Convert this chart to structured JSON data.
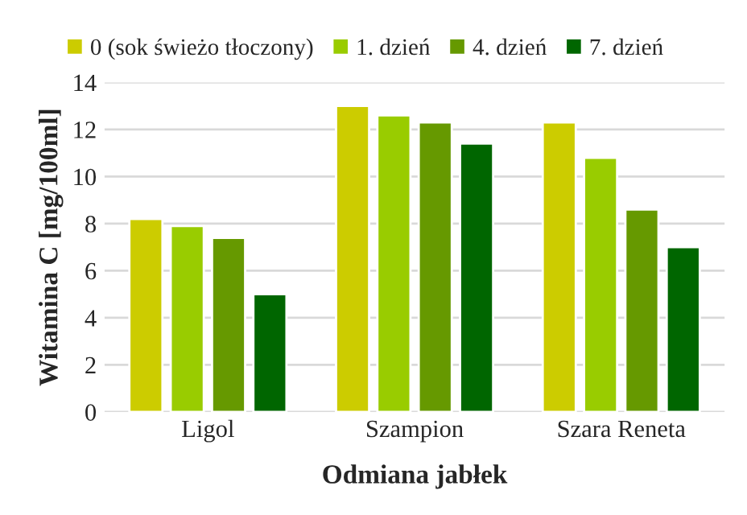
{
  "chart_data": {
    "type": "bar",
    "xlabel": "Odmiana jabłek",
    "ylabel": "Witamina C [mg/100ml]",
    "categories": [
      "Ligol",
      "Szampion",
      "Szara Reneta"
    ],
    "series": [
      {
        "name": "0 (sok świeżo tłoczony)",
        "color": "#cccc00",
        "values": [
          8.2,
          13.0,
          12.3
        ]
      },
      {
        "name": "1. dzień",
        "color": "#99cc00",
        "values": [
          7.9,
          12.6,
          10.8
        ]
      },
      {
        "name": "4. dzień",
        "color": "#669900",
        "values": [
          7.4,
          12.3,
          8.6
        ]
      },
      {
        "name": "7. dzień",
        "color": "#006600",
        "values": [
          5.0,
          11.4,
          7.0
        ]
      }
    ],
    "ylim": [
      0,
      14
    ],
    "yticks": [
      0,
      2,
      4,
      6,
      8,
      10,
      12,
      14
    ],
    "grid": "y",
    "legend": "top"
  }
}
